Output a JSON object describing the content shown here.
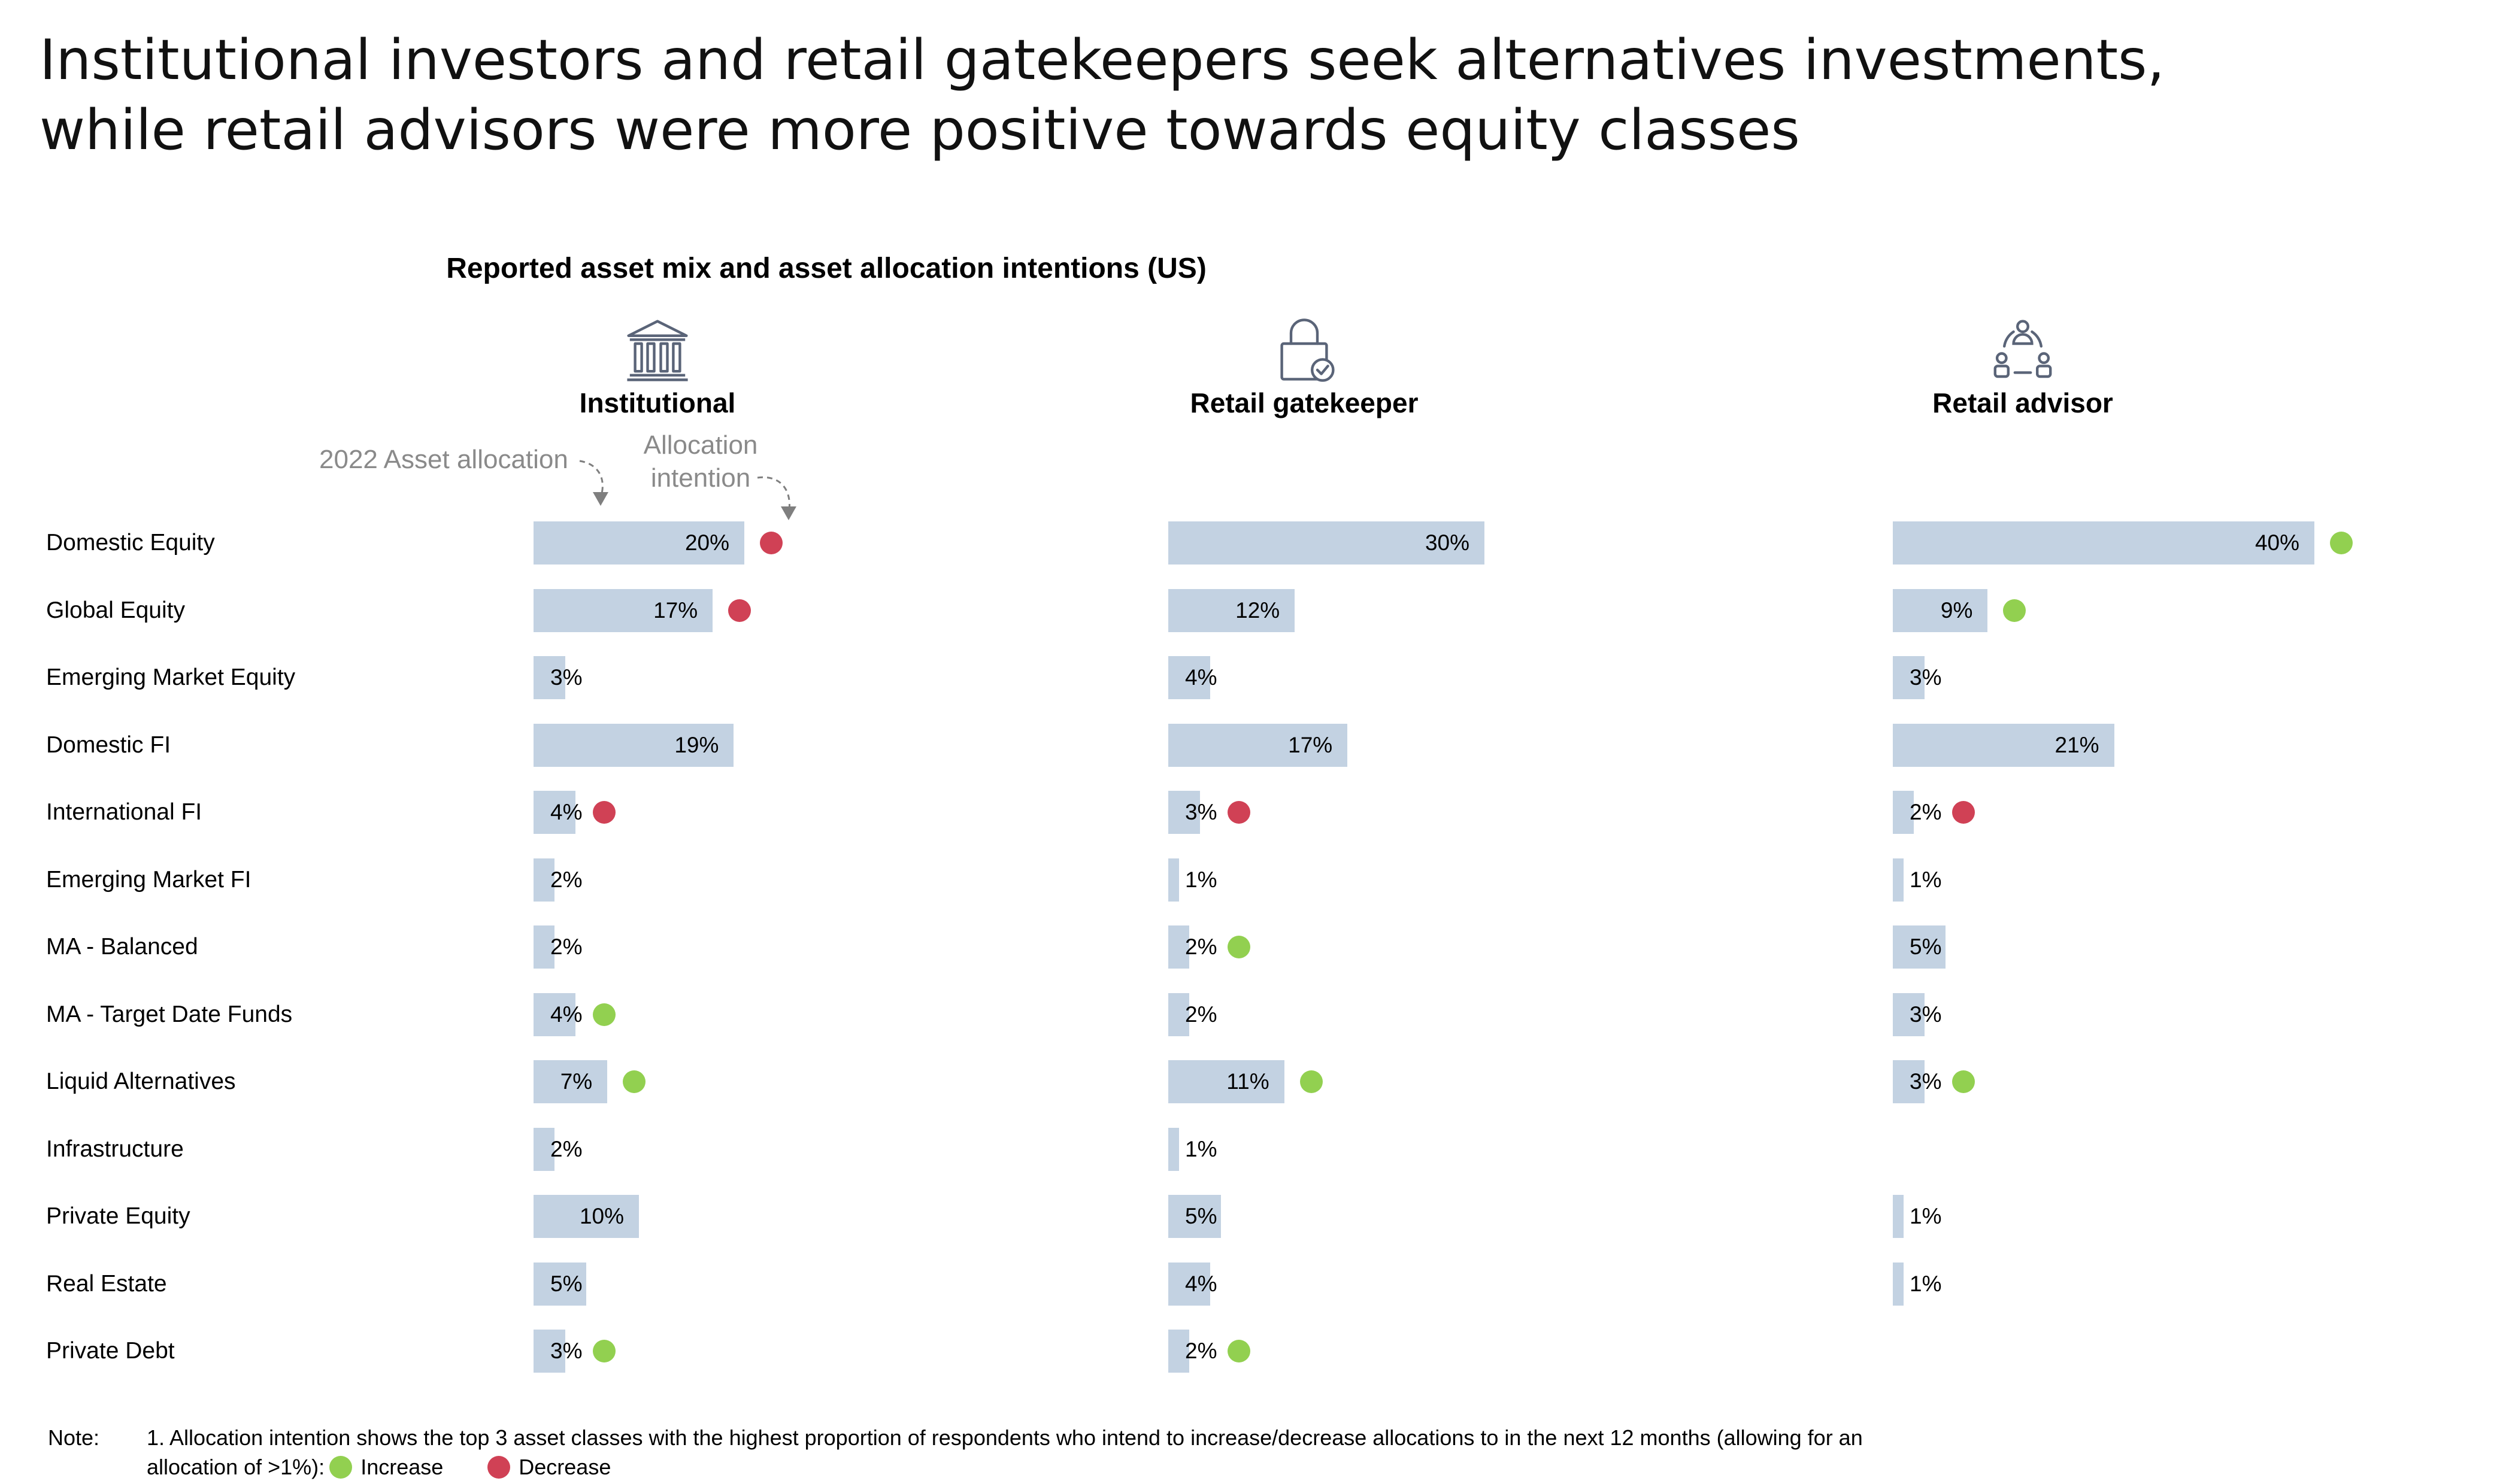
{
  "title": {
    "line1": "Institutional investors and retail gatekeepers seek alternatives investments,",
    "line2": "while retail advisors were more positive towards equity classes"
  },
  "subtitle": "Reported asset mix and asset allocation intentions (US)",
  "annotations": {
    "asset_allocation": "2022 Asset allocation",
    "allocation_intention_line1": "Allocation",
    "allocation_intention_line2": "intention"
  },
  "colors": {
    "bar": "#c3d2e2",
    "increase": "#92d050",
    "decrease": "#d04155",
    "icon": "#5a6478"
  },
  "chart_data": {
    "type": "bar",
    "orientation": "horizontal",
    "title": "Reported asset mix and asset allocation intentions (US)",
    "unit": "%",
    "categories": [
      "Domestic Equity",
      "Global Equity",
      "Emerging Market Equity",
      "Domestic FI",
      "International FI",
      "Emerging Market FI",
      "MA - Balanced",
      "MA - Target Date Funds",
      "Liquid Alternatives",
      "Infrastructure",
      "Private Equity",
      "Real Estate",
      "Private Debt"
    ],
    "series": [
      {
        "name": "Institutional",
        "icon": "bank-building-icon",
        "values": [
          20,
          17,
          3,
          19,
          4,
          2,
          2,
          4,
          7,
          2,
          10,
          5,
          3
        ],
        "labels": [
          "20%",
          "17%",
          "3%",
          "19%",
          "4%",
          "2%",
          "2%",
          "4%",
          "7%",
          "2%",
          "10%",
          "5%",
          "3%"
        ],
        "intentions": [
          "decrease",
          "decrease",
          null,
          null,
          "decrease",
          null,
          null,
          "increase",
          "increase",
          null,
          null,
          null,
          "increase"
        ]
      },
      {
        "name": "Retail gatekeeper",
        "icon": "padlock-check-icon",
        "values": [
          30,
          12,
          4,
          17,
          3,
          1,
          2,
          2,
          11,
          1,
          5,
          4,
          2
        ],
        "labels": [
          "30%",
          "12%",
          "4%",
          "17%",
          "3%",
          "1%",
          "2%",
          "2%",
          "11%",
          "1%",
          "5%",
          "4%",
          "2%"
        ],
        "intentions": [
          null,
          null,
          null,
          null,
          "decrease",
          null,
          "increase",
          null,
          "increase",
          null,
          null,
          null,
          "increase"
        ]
      },
      {
        "name": "Retail advisor",
        "icon": "people-network-icon",
        "values": [
          40,
          9,
          3,
          21,
          2,
          1,
          5,
          3,
          3,
          null,
          1,
          1,
          null
        ],
        "labels": [
          "40%",
          "9%",
          "3%",
          "21%",
          "2%",
          "1%",
          "5%",
          "3%",
          "3%",
          null,
          "1%",
          "1%",
          null
        ],
        "intentions": [
          "increase",
          "increase",
          null,
          null,
          "decrease",
          null,
          null,
          null,
          "increase",
          null,
          null,
          null,
          null
        ]
      }
    ],
    "intention_legend": [
      {
        "key": "increase",
        "label": "Increase"
      },
      {
        "key": "decrease",
        "label": "Decrease"
      }
    ]
  },
  "note": {
    "label": "Note:",
    "line1": "1. Allocation intention shows the top 3 asset classes with the highest proportion of respondents who intend to increase/decrease allocations to in the next 12 months (allowing for an",
    "line2": "allocation of >1%):",
    "legend_increase": "Increase",
    "legend_decrease": "Decrease"
  }
}
